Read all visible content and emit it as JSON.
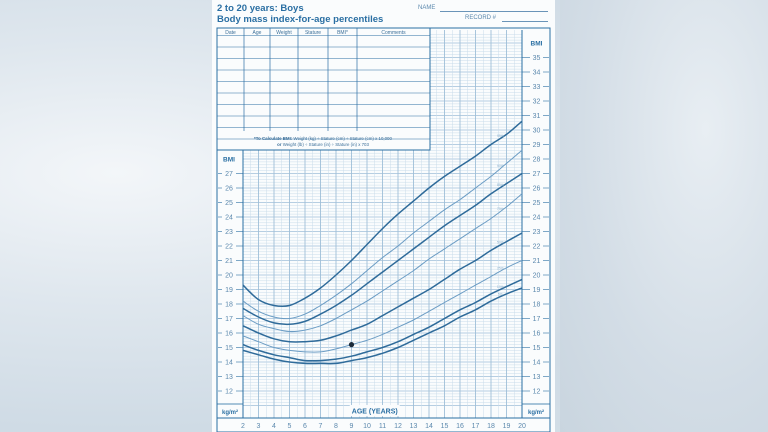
{
  "header": {
    "title_line1": "2 to 20 years: Boys",
    "title_line2": "Body mass index-for-age percentiles",
    "name_label": "NAME",
    "record_label": "RECORD #"
  },
  "record_table": {
    "columns": [
      "Date",
      "Age",
      "Weight",
      "Stature",
      "BMI*",
      "Comments"
    ],
    "rows": 9,
    "footnote_line1_bold": "*To Calculate BMI:",
    "footnote_line1": "Weight (kg) ÷ Stature (cm) ÷ Stature (cm) x 10,000",
    "footnote_line2_bold": "or",
    "footnote_line2": "Weight (lb) ÷ Stature (in) ÷ Stature (in) x 703"
  },
  "axes": {
    "left_title": "BMI",
    "right_title": "BMI",
    "left_unit": "kg/m²",
    "right_unit": "kg/m²",
    "x_title": "AGE (YEARS)",
    "left_ticks": [
      12,
      13,
      14,
      15,
      16,
      17,
      18,
      19,
      20,
      21,
      22,
      23,
      24,
      25,
      26,
      27
    ],
    "right_ticks": [
      12,
      13,
      14,
      15,
      16,
      17,
      18,
      19,
      20,
      21,
      22,
      23,
      24,
      25,
      26,
      27,
      28,
      29,
      30,
      31,
      32,
      33,
      34,
      35
    ],
    "x_ticks": [
      2,
      3,
      4,
      5,
      6,
      7,
      8,
      9,
      10,
      11,
      12,
      13,
      14,
      15,
      16,
      17,
      18,
      19,
      20
    ]
  },
  "colors": {
    "primary": "#2a6fa3",
    "grid": "#9fbfd8",
    "grid_minor": "#c9dcea",
    "curve_major": "#2f6b9a",
    "curve_minor": "#6b9cc4",
    "point": "#1a2a3a"
  },
  "chart_data": {
    "type": "line",
    "title": "2 to 20 years: Boys — Body mass index-for-age percentiles",
    "xlabel": "AGE (YEARS)",
    "ylabel": "BMI (kg/m²)",
    "xlim": [
      2,
      20
    ],
    "ylim": [
      12,
      35
    ],
    "grid": true,
    "x": [
      2,
      3,
      4,
      5,
      6,
      7,
      8,
      9,
      10,
      11,
      12,
      13,
      14,
      15,
      16,
      17,
      18,
      19,
      20
    ],
    "series": [
      {
        "name": "95th",
        "style": "major",
        "values": [
          19.3,
          18.3,
          17.9,
          17.9,
          18.4,
          19.1,
          20.0,
          21.0,
          22.1,
          23.2,
          24.2,
          25.1,
          26.0,
          26.8,
          27.5,
          28.2,
          29.0,
          29.7,
          30.6
        ]
      },
      {
        "name": "90th",
        "style": "minor",
        "values": [
          18.2,
          17.5,
          17.1,
          17.0,
          17.3,
          17.9,
          18.6,
          19.4,
          20.3,
          21.2,
          22.0,
          22.9,
          23.7,
          24.5,
          25.2,
          26.0,
          26.8,
          27.7,
          28.6
        ]
      },
      {
        "name": "85th",
        "style": "major",
        "values": [
          17.7,
          17.1,
          16.7,
          16.6,
          16.8,
          17.3,
          17.9,
          18.6,
          19.4,
          20.2,
          21.0,
          21.8,
          22.6,
          23.4,
          24.1,
          24.8,
          25.6,
          26.3,
          27.0
        ]
      },
      {
        "name": "75th",
        "style": "minor",
        "values": [
          17.2,
          16.6,
          16.3,
          16.1,
          16.2,
          16.5,
          17.0,
          17.6,
          18.2,
          18.9,
          19.6,
          20.3,
          21.1,
          21.8,
          22.5,
          23.2,
          23.9,
          24.7,
          25.6
        ]
      },
      {
        "name": "50th",
        "style": "major",
        "values": [
          16.5,
          16.0,
          15.6,
          15.4,
          15.4,
          15.5,
          15.8,
          16.2,
          16.6,
          17.2,
          17.8,
          18.4,
          19.0,
          19.7,
          20.4,
          21.0,
          21.7,
          22.3,
          22.9
        ]
      },
      {
        "name": "25th",
        "style": "minor",
        "values": [
          15.8,
          15.4,
          15.0,
          14.8,
          14.7,
          14.7,
          14.9,
          15.2,
          15.5,
          15.9,
          16.4,
          16.9,
          17.5,
          18.1,
          18.7,
          19.3,
          19.9,
          20.5,
          21.0
        ]
      },
      {
        "name": "10th",
        "style": "major",
        "values": [
          15.2,
          14.8,
          14.5,
          14.3,
          14.1,
          14.1,
          14.2,
          14.4,
          14.7,
          15.0,
          15.4,
          15.9,
          16.4,
          17.0,
          17.6,
          18.1,
          18.7,
          19.2,
          19.7
        ]
      },
      {
        "name": "5th",
        "style": "major",
        "values": [
          14.8,
          14.5,
          14.2,
          14.0,
          13.9,
          13.9,
          13.9,
          14.1,
          14.3,
          14.6,
          15.0,
          15.5,
          16.0,
          16.5,
          17.1,
          17.6,
          18.2,
          18.7,
          19.1
        ]
      }
    ],
    "points": [
      {
        "age": 9.0,
        "bmi": 15.2
      }
    ]
  }
}
